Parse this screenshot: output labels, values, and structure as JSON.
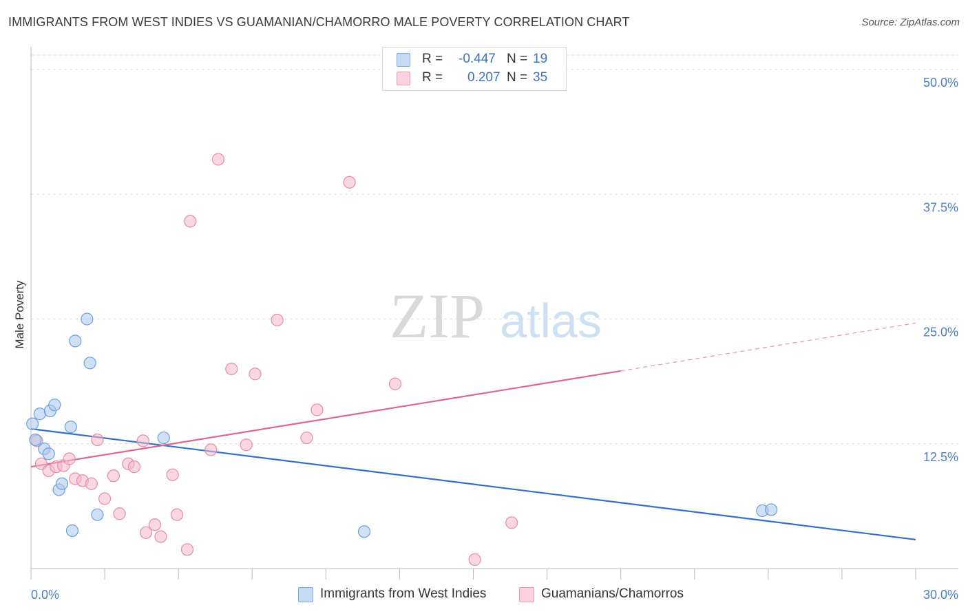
{
  "title": "IMMIGRANTS FROM WEST INDIES VS GUAMANIAN/CHAMORRO MALE POVERTY CORRELATION CHART",
  "source": "Source: ZipAtlas.com",
  "watermark": {
    "zip": "ZIP",
    "atlas": "atlas"
  },
  "legend": {
    "rows": [
      {
        "r_label": "R =",
        "r_value": "-0.447",
        "n_label": "N =",
        "n_value": "19",
        "color": "#a9c8ef"
      },
      {
        "r_label": "R =",
        "r_value": "0.207",
        "n_label": "N =",
        "n_value": "35",
        "color": "#f6b8cb"
      }
    ]
  },
  "bottom_legend": [
    {
      "label": "Immigrants from West Indies",
      "color": "#a9c8ef"
    },
    {
      "label": "Guamanians/Chamorros",
      "color": "#f6b8cb"
    }
  ],
  "chart_data": {
    "type": "scatter",
    "title": "IMMIGRANTS FROM WEST INDIES VS GUAMANIAN/CHAMORRO MALE POVERTY CORRELATION CHART",
    "xlabel": "",
    "ylabel": "Male Poverty",
    "xlim": [
      0,
      30
    ],
    "ylim": [
      0,
      52
    ],
    "x_tick_labels": [
      {
        "value": 0,
        "label": "0.0%"
      },
      {
        "value": 30,
        "label": "30.0%"
      }
    ],
    "y_tick_labels": [
      {
        "value": 12.5,
        "label": "12.5%"
      },
      {
        "value": 25,
        "label": "25.0%"
      },
      {
        "value": 37.5,
        "label": "37.5%"
      },
      {
        "value": 50,
        "label": "50.0%"
      }
    ],
    "grid": true,
    "series": [
      {
        "name": "Immigrants from West Indies",
        "color": "#a9c8ef",
        "stroke": "#6a9fdc",
        "line_color": "#2f6fcf",
        "points": [
          {
            "x": 0.05,
            "y": 14.5
          },
          {
            "x": 0.15,
            "y": 12.9
          },
          {
            "x": 0.3,
            "y": 15.5
          },
          {
            "x": 0.45,
            "y": 12.0
          },
          {
            "x": 0.6,
            "y": 11.5
          },
          {
            "x": 0.65,
            "y": 15.8
          },
          {
            "x": 0.8,
            "y": 16.4
          },
          {
            "x": 0.95,
            "y": 7.9
          },
          {
            "x": 1.05,
            "y": 8.5
          },
          {
            "x": 1.35,
            "y": 14.2
          },
          {
            "x": 1.4,
            "y": 3.8
          },
          {
            "x": 1.5,
            "y": 22.8
          },
          {
            "x": 1.9,
            "y": 25.0
          },
          {
            "x": 2.0,
            "y": 20.6
          },
          {
            "x": 2.25,
            "y": 5.4
          },
          {
            "x": 4.5,
            "y": 13.1
          },
          {
            "x": 11.3,
            "y": 3.7
          },
          {
            "x": 24.8,
            "y": 5.8
          },
          {
            "x": 25.1,
            "y": 5.9
          }
        ],
        "trend": {
          "x0": 0,
          "y0": 14.0,
          "x1": 30,
          "y1": 2.9
        }
      },
      {
        "name": "Guamanians/Chamorros",
        "color": "#f6b8cb",
        "stroke": "#e88aa8",
        "line_color": "#e0658e",
        "points": [
          {
            "x": 0.2,
            "y": 12.8
          },
          {
            "x": 0.35,
            "y": 10.5
          },
          {
            "x": 0.6,
            "y": 9.8
          },
          {
            "x": 0.85,
            "y": 10.2
          },
          {
            "x": 1.1,
            "y": 10.3
          },
          {
            "x": 1.3,
            "y": 11.0
          },
          {
            "x": 1.5,
            "y": 9.0
          },
          {
            "x": 1.75,
            "y": 8.8
          },
          {
            "x": 2.05,
            "y": 8.5
          },
          {
            "x": 2.25,
            "y": 12.9
          },
          {
            "x": 2.5,
            "y": 7.0
          },
          {
            "x": 2.8,
            "y": 9.3
          },
          {
            "x": 3.0,
            "y": 5.5
          },
          {
            "x": 3.3,
            "y": 10.5
          },
          {
            "x": 3.5,
            "y": 10.2
          },
          {
            "x": 3.8,
            "y": 12.8
          },
          {
            "x": 3.9,
            "y": 3.6
          },
          {
            "x": 4.2,
            "y": 4.4
          },
          {
            "x": 4.4,
            "y": 3.2
          },
          {
            "x": 4.8,
            "y": 9.4
          },
          {
            "x": 4.95,
            "y": 5.4
          },
          {
            "x": 5.3,
            "y": 1.9
          },
          {
            "x": 5.4,
            "y": 34.8
          },
          {
            "x": 6.1,
            "y": 11.9
          },
          {
            "x": 6.35,
            "y": 41.0
          },
          {
            "x": 6.8,
            "y": 20.0
          },
          {
            "x": 7.3,
            "y": 12.4
          },
          {
            "x": 7.6,
            "y": 19.5
          },
          {
            "x": 8.35,
            "y": 24.9
          },
          {
            "x": 9.35,
            "y": 13.1
          },
          {
            "x": 9.7,
            "y": 15.9
          },
          {
            "x": 10.8,
            "y": 38.7
          },
          {
            "x": 12.35,
            "y": 18.5
          },
          {
            "x": 15.05,
            "y": 0.9
          },
          {
            "x": 16.3,
            "y": 4.6
          }
        ],
        "trend": {
          "x0": 0,
          "y0": 10.2,
          "x1": 20,
          "y1": 19.8
        },
        "trend_dashed": {
          "x0": 20,
          "y0": 19.8,
          "x1": 30,
          "y1": 24.6
        }
      }
    ]
  }
}
